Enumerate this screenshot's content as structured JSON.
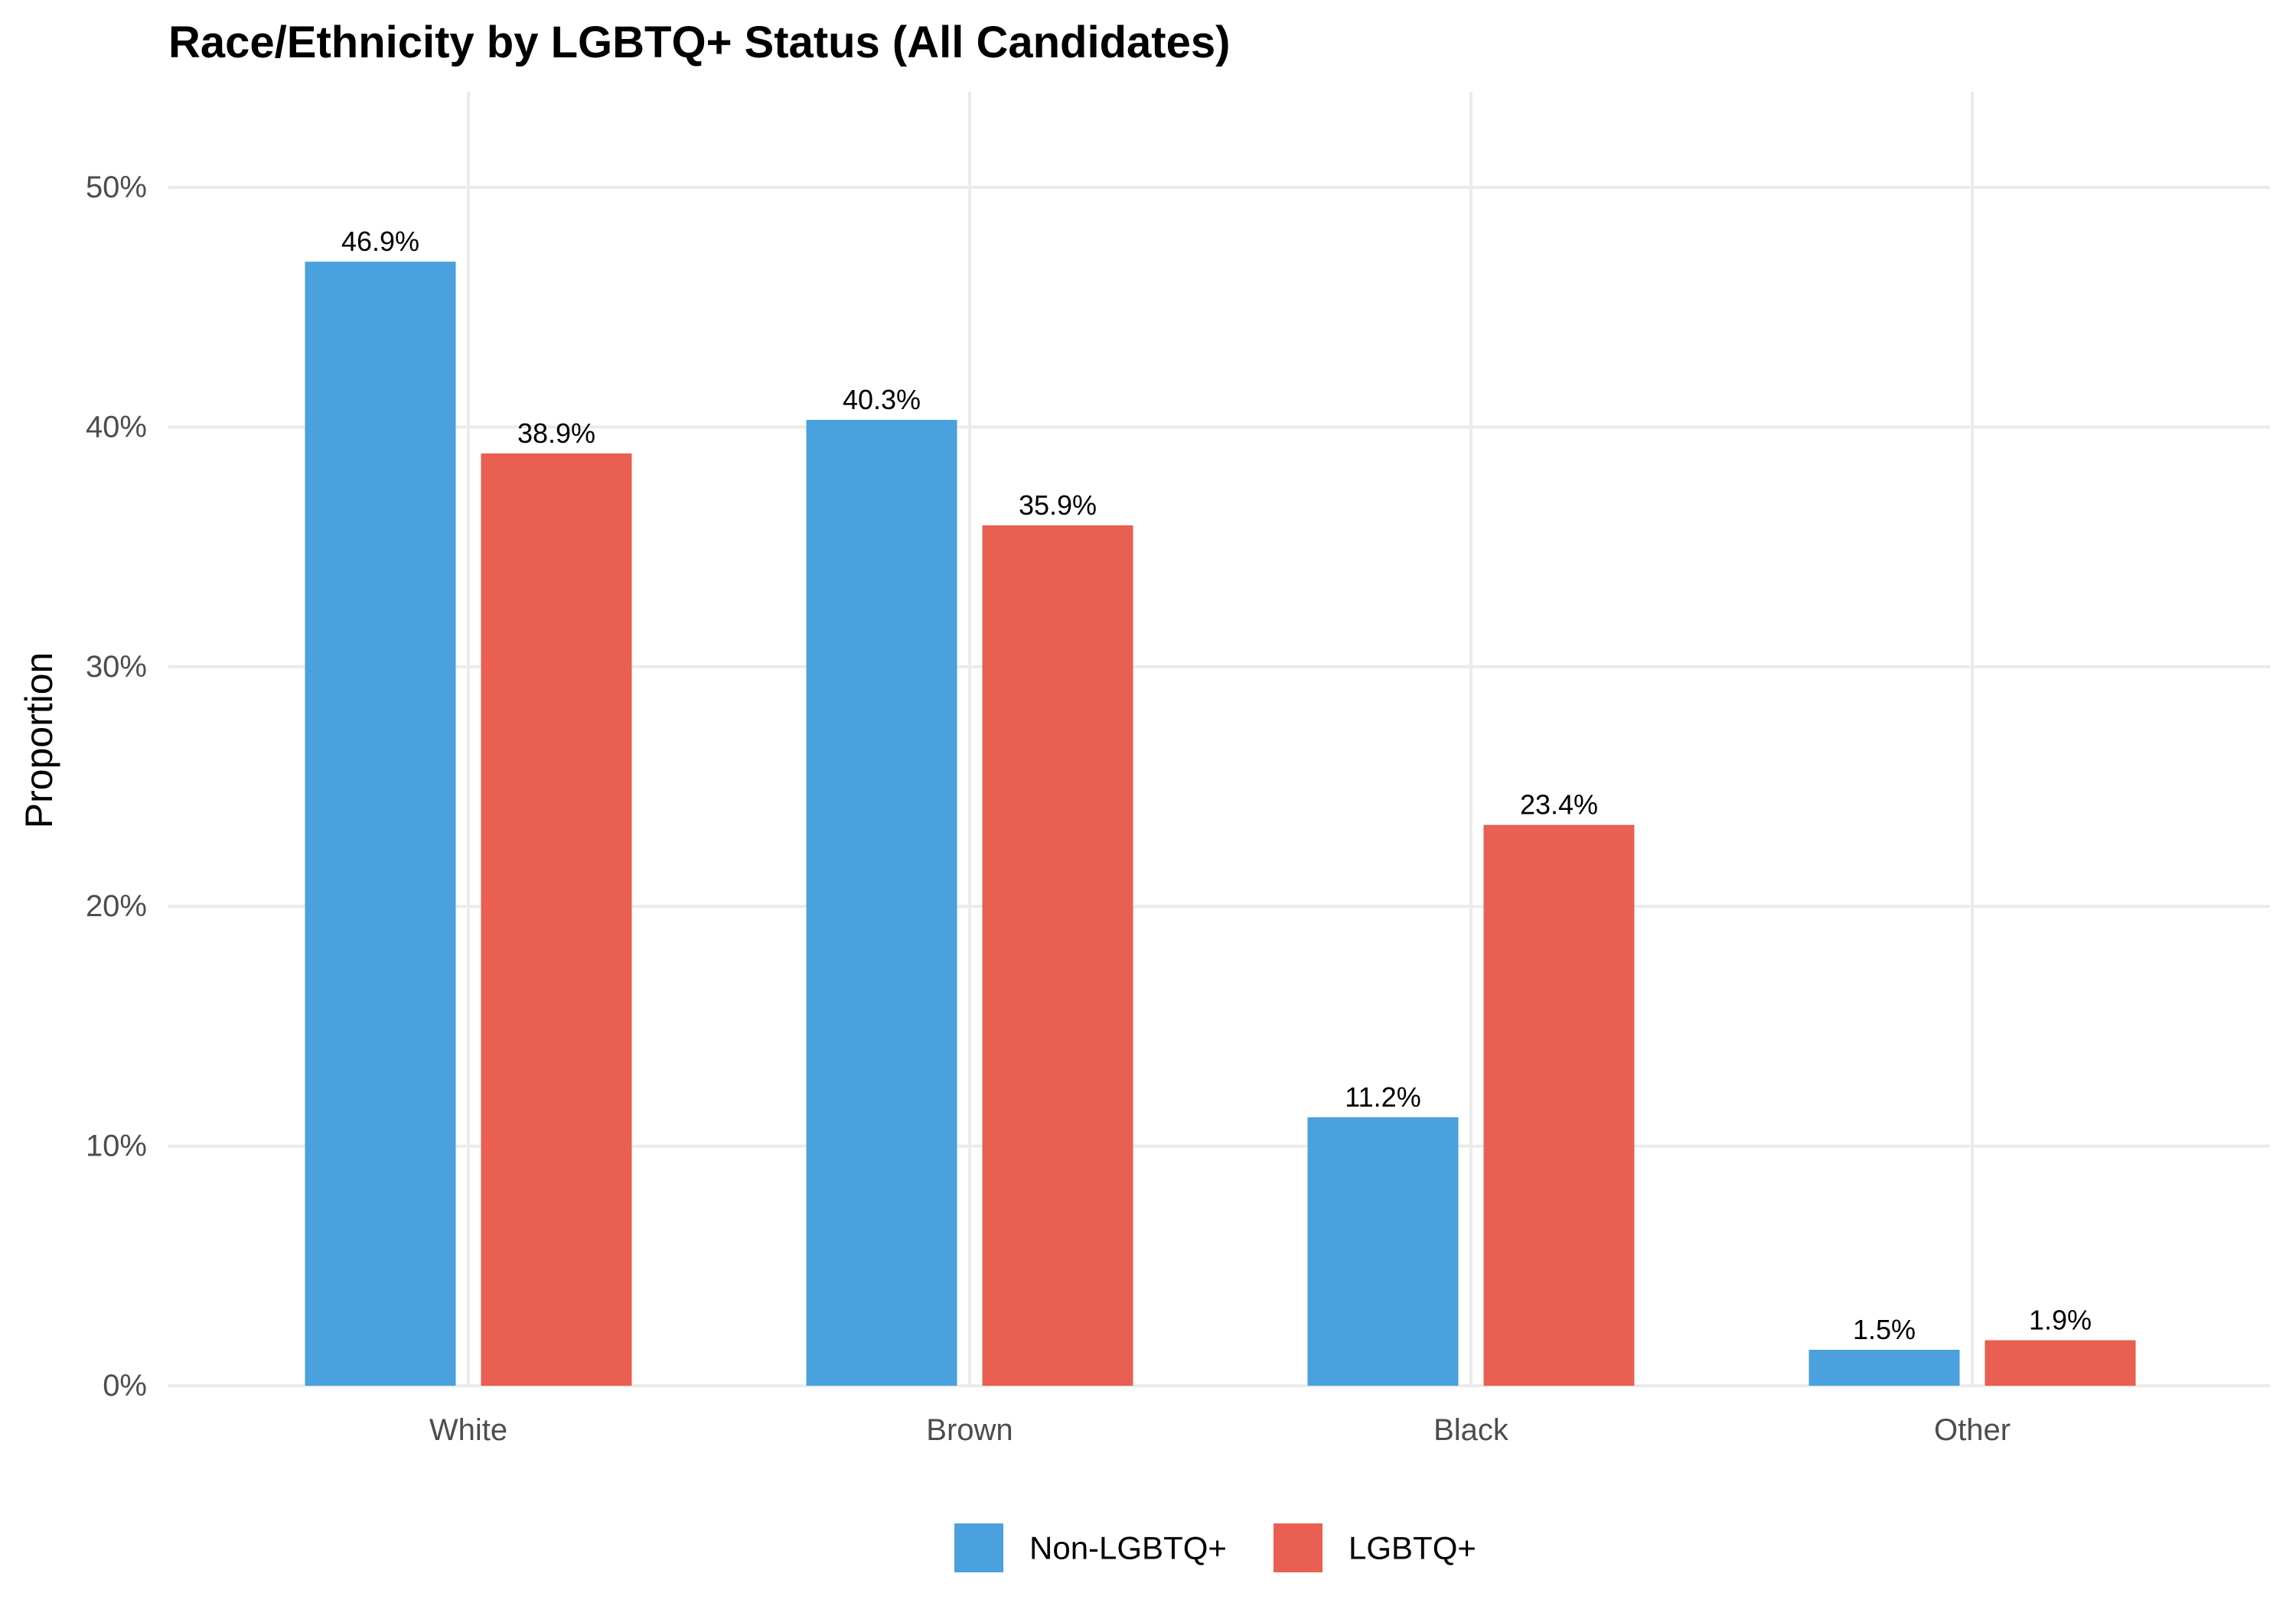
{
  "chart_data": {
    "type": "bar",
    "title": "Race/Ethnicity by LGBTQ+ Status (All Candidates)",
    "xlabel": "",
    "ylabel": "Proportion",
    "categories": [
      "White",
      "Brown",
      "Black",
      "Other"
    ],
    "series": [
      {
        "name": "Non-LGBTQ+",
        "color": "#4aa1de",
        "values": [
          46.9,
          40.3,
          11.2,
          1.5
        ],
        "labels": [
          "46.9%",
          "40.3%",
          "11.2%",
          "1.5%"
        ]
      },
      {
        "name": "LGBTQ+",
        "color": "#e95f51",
        "values": [
          38.9,
          35.9,
          23.4,
          1.9
        ],
        "labels": [
          "38.9%",
          "35.9%",
          "23.4%",
          "1.9%"
        ]
      }
    ],
    "ylim": [
      0,
      50
    ],
    "yticks": [
      0,
      10,
      20,
      30,
      40,
      50
    ],
    "ytick_labels": [
      "0%",
      "10%",
      "20%",
      "30%",
      "40%",
      "50%"
    ],
    "grid": true,
    "legend_position": "bottom"
  }
}
